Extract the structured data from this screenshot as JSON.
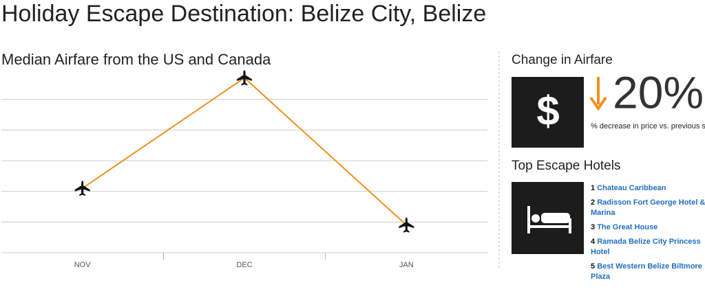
{
  "header": {
    "title": "Holiday Escape Destination: Belize City, Belize"
  },
  "chart_data": {
    "type": "line",
    "title": "Median Airfare from the US and Canada",
    "categories": [
      "NOV",
      "DEC",
      "JAN"
    ],
    "series": [
      {
        "color": "#f0901e",
        "values": [
          2.1,
          5.7,
          0.9
        ]
      }
    ],
    "ylim": [
      0,
      6
    ],
    "yticks": [
      0,
      1,
      2,
      3,
      4,
      5
    ],
    "grid": true
  },
  "change": {
    "heading": "Change in Airfare",
    "icon": "$",
    "value": "20%",
    "caption": "% decrease in price vs. previous season"
  },
  "hotels": {
    "heading": "Top Escape Hotels",
    "items": [
      {
        "rank": 1,
        "name": "Chateau Caribbean"
      },
      {
        "rank": 2,
        "name": "Radisson Fort George Hotel & Marina"
      },
      {
        "rank": 3,
        "name": "The Great House"
      },
      {
        "rank": 4,
        "name": "Ramada Belize City Princess Hotel"
      },
      {
        "rank": 5,
        "name": "Best Western Belize Biltmore Plaza"
      }
    ]
  }
}
